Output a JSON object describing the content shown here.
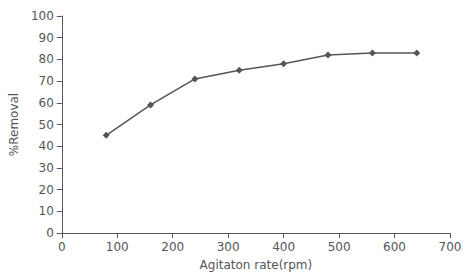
{
  "chart_data": {
    "type": "line",
    "x": [
      80,
      160,
      240,
      320,
      400,
      480,
      560,
      640
    ],
    "values": [
      45,
      59,
      71,
      75,
      78,
      82,
      83,
      83
    ],
    "xlabel": "Agitaton rate(rpm)",
    "ylabel": "%Removal",
    "xlim": [
      0,
      700
    ],
    "ylim": [
      0,
      100
    ],
    "xticks": [
      0,
      100,
      200,
      300,
      400,
      500,
      600,
      700
    ],
    "yticks": [
      0,
      10,
      20,
      30,
      40,
      50,
      60,
      70,
      80,
      90,
      100
    ],
    "color": "#555555",
    "marker": "diamond",
    "grid": false
  }
}
